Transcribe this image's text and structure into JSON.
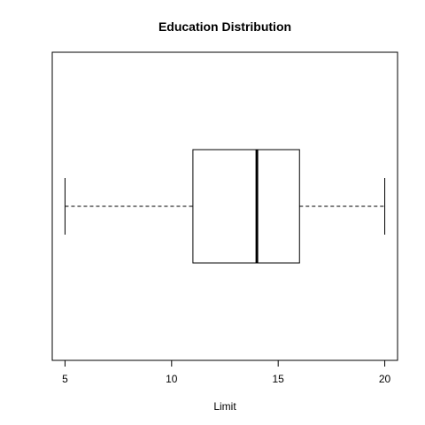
{
  "chart_data": {
    "type": "boxplot",
    "orientation": "horizontal",
    "title": "Education Distribution",
    "xlabel": "Limit",
    "ylabel": "",
    "xlim": [
      4.4,
      20.6
    ],
    "x_ticks": [
      5,
      10,
      15,
      20
    ],
    "box": {
      "min": 5,
      "q1": 11,
      "median": 14,
      "q3": 16,
      "max": 20
    },
    "grid": false,
    "legend": "none",
    "colors": {
      "stroke": "#000000",
      "background": "#ffffff"
    }
  }
}
